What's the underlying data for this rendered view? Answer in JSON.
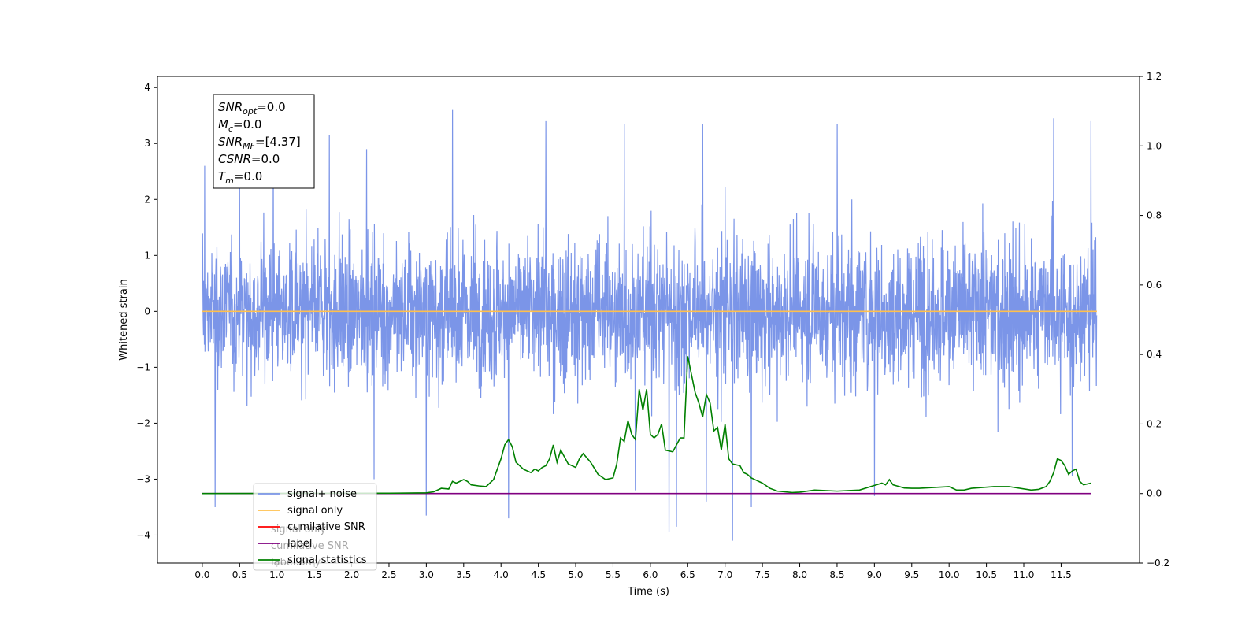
{
  "chart_data": {
    "type": "line",
    "xlabel": "Time (s)",
    "ylabel": "Whitened strain",
    "title": "",
    "xlim": [
      -0.6,
      12.55
    ],
    "ylim": [
      -4.5,
      4.2
    ],
    "y2lim": [
      -0.2,
      1.2
    ],
    "x_ticks": [
      0.0,
      0.5,
      1.0,
      1.5,
      2.0,
      2.5,
      3.0,
      3.5,
      4.0,
      4.5,
      5.0,
      5.5,
      6.0,
      6.5,
      7.0,
      7.5,
      8.0,
      8.5,
      9.0,
      9.5,
      10.0,
      10.5,
      11.0,
      11.5
    ],
    "x_tick_labels": [
      "0.0",
      "0.5",
      "1.0",
      "1.5",
      "2.0",
      "2.5",
      "3.0",
      "3.5",
      "4.0",
      "4.5",
      "5.0",
      "5.5",
      "6.0",
      "6.5",
      "7.0",
      "7.5",
      "8.0",
      "8.5",
      "9.0",
      "9.5",
      "10.0",
      "10.5",
      "11.0",
      "11.5"
    ],
    "y_ticks": [
      -4,
      -3,
      -2,
      -1,
      0,
      1,
      2,
      3,
      4
    ],
    "y_tick_labels": [
      "−4",
      "−3",
      "−2",
      "−1",
      "0",
      "1",
      "2",
      "3",
      "4"
    ],
    "y2_ticks": [
      -0.2,
      0.0,
      0.2,
      0.4,
      0.6,
      0.8,
      1.0,
      1.2
    ],
    "y2_tick_labels": [
      "−0.2",
      "0.0",
      "0.2",
      "0.4",
      "0.6",
      "0.8",
      "1.0",
      "1.2"
    ],
    "grid": false,
    "legend_position": "lower-left",
    "series": [
      {
        "name": "signal+ noise",
        "color": "#7b95e8",
        "axis": "left",
        "x_range": [
          0.0,
          11.98
        ],
        "envelope_typical": [
          -1.7,
          2.3
        ],
        "peaks": [
          {
            "x": 0.03,
            "y": 2.6
          },
          {
            "x": 0.17,
            "y": -3.5
          },
          {
            "x": 0.5,
            "y": 2.7
          },
          {
            "x": 0.95,
            "y": 2.9
          },
          {
            "x": 1.7,
            "y": 3.15
          },
          {
            "x": 2.2,
            "y": 2.9
          },
          {
            "x": 2.3,
            "y": -3.0
          },
          {
            "x": 3.0,
            "y": -3.65
          },
          {
            "x": 3.35,
            "y": 3.6
          },
          {
            "x": 4.1,
            "y": -3.7
          },
          {
            "x": 4.6,
            "y": 3.4
          },
          {
            "x": 5.65,
            "y": 3.35
          },
          {
            "x": 5.8,
            "y": -3.2
          },
          {
            "x": 6.25,
            "y": -3.95
          },
          {
            "x": 6.35,
            "y": -3.85
          },
          {
            "x": 6.7,
            "y": 3.35
          },
          {
            "x": 6.75,
            "y": -3.4
          },
          {
            "x": 7.1,
            "y": -4.1
          },
          {
            "x": 7.35,
            "y": -3.5
          },
          {
            "x": 8.5,
            "y": 3.35
          },
          {
            "x": 9.0,
            "y": -3.3
          },
          {
            "x": 11.4,
            "y": 3.45
          },
          {
            "x": 11.65,
            "y": -2.95
          },
          {
            "x": 11.9,
            "y": 3.4
          }
        ]
      },
      {
        "name": "signal only",
        "color": "#ffc04d",
        "axis": "left",
        "x": [
          0.0,
          11.98
        ],
        "values": [
          0.0,
          0.0
        ]
      },
      {
        "name": "cumilative SNR",
        "color": "#ff0000",
        "axis": "right",
        "x": [],
        "values": []
      },
      {
        "name": "label",
        "color": "#800080",
        "axis": "right",
        "x": [
          0.0,
          11.9
        ],
        "values": [
          0.0,
          0.0
        ]
      },
      {
        "name": "signal statistics",
        "color": "#008000",
        "axis": "right",
        "x": [
          0.0,
          2.5,
          3.0,
          3.1,
          3.2,
          3.3,
          3.35,
          3.4,
          3.5,
          3.55,
          3.6,
          3.7,
          3.8,
          3.9,
          4.0,
          4.05,
          4.1,
          4.15,
          4.2,
          4.3,
          4.4,
          4.45,
          4.5,
          4.55,
          4.6,
          4.65,
          4.7,
          4.75,
          4.8,
          4.9,
          5.0,
          5.05,
          5.1,
          5.2,
          5.3,
          5.4,
          5.5,
          5.55,
          5.6,
          5.65,
          5.7,
          5.75,
          5.8,
          5.85,
          5.9,
          5.95,
          6.0,
          6.05,
          6.1,
          6.15,
          6.2,
          6.3,
          6.4,
          6.45,
          6.5,
          6.6,
          6.65,
          6.7,
          6.75,
          6.8,
          6.85,
          6.9,
          6.95,
          7.0,
          7.05,
          7.1,
          7.2,
          7.25,
          7.3,
          7.35,
          7.4,
          7.5,
          7.6,
          7.7,
          7.8,
          7.9,
          8.0,
          8.2,
          8.5,
          8.8,
          9.1,
          9.15,
          9.2,
          9.25,
          9.3,
          9.4,
          9.5,
          9.6,
          10.0,
          10.05,
          10.1,
          10.2,
          10.3,
          10.6,
          10.8,
          11.1,
          11.2,
          11.3,
          11.35,
          11.4,
          11.45,
          11.5,
          11.55,
          11.6,
          11.65,
          11.7,
          11.75,
          11.8,
          11.9
        ],
        "values": [
          0.0,
          0.001,
          0.002,
          0.005,
          0.015,
          0.013,
          0.035,
          0.03,
          0.04,
          0.035,
          0.025,
          0.022,
          0.02,
          0.04,
          0.1,
          0.14,
          0.155,
          0.135,
          0.09,
          0.07,
          0.06,
          0.07,
          0.065,
          0.075,
          0.08,
          0.1,
          0.14,
          0.09,
          0.125,
          0.085,
          0.075,
          0.1,
          0.115,
          0.09,
          0.055,
          0.04,
          0.045,
          0.085,
          0.16,
          0.15,
          0.21,
          0.17,
          0.155,
          0.3,
          0.24,
          0.3,
          0.17,
          0.16,
          0.17,
          0.2,
          0.125,
          0.12,
          0.16,
          0.16,
          0.395,
          0.29,
          0.26,
          0.22,
          0.285,
          0.26,
          0.18,
          0.19,
          0.125,
          0.2,
          0.1,
          0.085,
          0.08,
          0.06,
          0.055,
          0.045,
          0.04,
          0.03,
          0.015,
          0.007,
          0.005,
          0.003,
          0.004,
          0.01,
          0.007,
          0.01,
          0.03,
          0.025,
          0.04,
          0.025,
          0.022,
          0.016,
          0.015,
          0.015,
          0.02,
          0.015,
          0.01,
          0.01,
          0.015,
          0.02,
          0.02,
          0.01,
          0.012,
          0.02,
          0.035,
          0.06,
          0.1,
          0.095,
          0.08,
          0.055,
          0.065,
          0.07,
          0.035,
          0.025,
          0.03
        ]
      }
    ],
    "annotation": {
      "lines": [
        {
          "base": "SNR",
          "sub": "opt",
          "value": "=0.0"
        },
        {
          "base": "M",
          "sub": "c",
          "value": "=0.0"
        },
        {
          "base": "SNR",
          "sub": "MF",
          "value": "=[4.37]"
        },
        {
          "base": "CSNR",
          "sub": "",
          "value": "=0.0"
        },
        {
          "base": "T",
          "sub": "m",
          "value": "=0.0"
        }
      ]
    },
    "legend_ghost_text": [
      "signal only",
      "cumilative SNR",
      "label only"
    ]
  }
}
